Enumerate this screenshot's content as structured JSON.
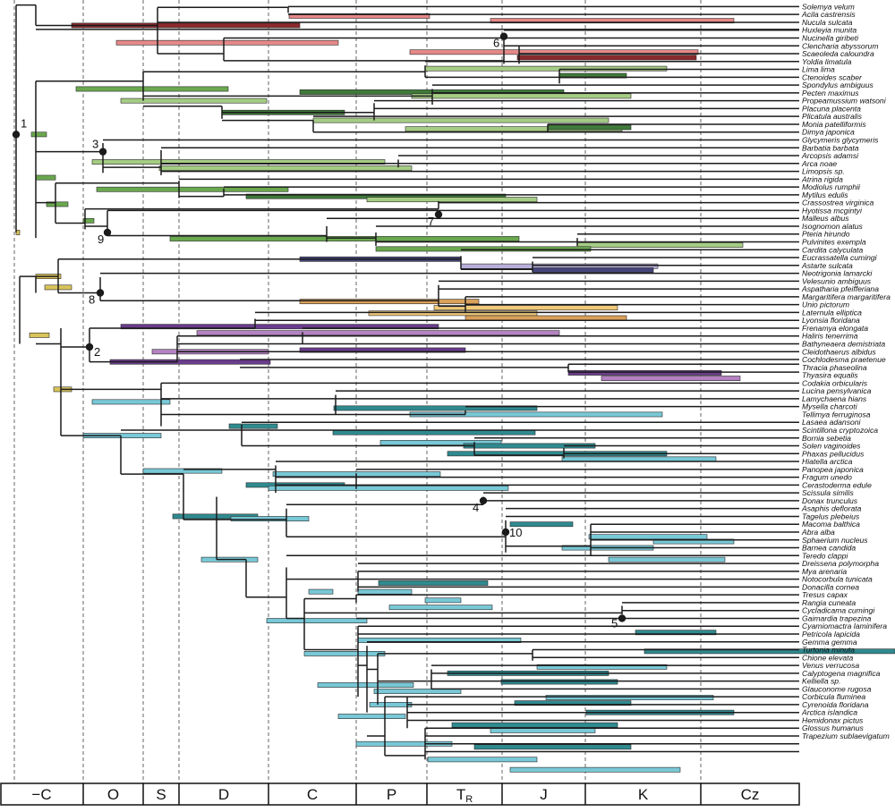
{
  "figure": {
    "periods": [
      "−C",
      "O",
      "S",
      "D",
      "C",
      "P",
      "TR",
      "J",
      "K",
      "Cz"
    ],
    "taxa": [
      "Solemya velum",
      "Acila castrensis",
      "Nucula sulcata",
      "Huxleyia munita",
      "Nucinella giribeti",
      "Clencharia abyssorum",
      "Scaeoleda caloundra",
      "Yoldia limatula",
      "Lima lima",
      "Ctenoides scaber",
      "Spondylus ambiguus",
      "Pecten maximus",
      "Propeamussium watsoni",
      "Placuna placenta",
      "Plicatula australis",
      "Monia patelliformis",
      "Dimya japonica",
      "Glycymeris glycymeris",
      "Barbatia barbata",
      "Arcopsis adamsi",
      "Arca noae",
      "Limopsis sp.",
      "Atrina rigida",
      "Modiolus rumphii",
      "Mytilus edulis",
      "Crassostrea virginica",
      "Hyotissa mcgintyi",
      "Malleus albus",
      "Isognomon alatus",
      "Pteria hirundo",
      "Pulvinites exempla",
      "Cardita calyculata",
      "Eucrassatella cumingi",
      "Astarte sulcata",
      "Neotrigonia lamarcki",
      "Velesunio ambiguus",
      "Aspatharia pfeifferiana",
      "Margaritifera margaritifera",
      "Unio pictorum",
      "Laternula elliptica",
      "Lyonsia floridana",
      "Frenamya elongata",
      "Haliris tenerrima",
      "Bathyneaera demistriata",
      "Cleidothaerus albidus",
      "Cochlodesma praetenue",
      "Thracia phaseolina",
      "Thyasira equalis",
      "Codakia orbicularis",
      "Lucina pensylvanica",
      "Lamychaena hians",
      "Mysella charcoti",
      "Tellimya ferruginosa",
      "Lasaea adansoni",
      "Scintillona cryptozoica",
      "Bornia sebetia",
      "Solen vaginoides",
      "Phaxas pellucidus",
      "Hiatella arctica",
      "Panopea japonica",
      "Fragum unedo",
      "Cerastoderma edule",
      "Scissula similis",
      "Donax trunculus",
      "Asaphis deflorata",
      "Tagelus plebeius",
      "Macoma balthica",
      "Abra alba",
      "Sphaerium nucleus",
      "Barnea candida",
      "Teredo clappi",
      "Dreissena polymorpha",
      "Mya arenaria",
      "Notocorbula tunicata",
      "Donacilla cornea",
      "Tresus capax",
      "Rangia cuneata",
      "Cycladicama cumingi",
      "Gaimardia trapezina",
      "Cyamiomactra laminifera",
      "Petricola lapicida",
      "Gemma gemma",
      "Turtonia minuta",
      "Chione elevata",
      "Venus verrucosa",
      "Calyptogena magnifica",
      "Kelliella sp.",
      "Glauconome rugosa",
      "Corbicula fluminea",
      "Cyrenoida floridana",
      "Arctica islandica",
      "Hemidonax pictus",
      "Glossus humanus",
      "Trapezium sublaevigatum"
    ],
    "node_labels": [
      "1",
      "2",
      "3",
      "4",
      "5",
      "6",
      "7",
      "8",
      "9",
      "10"
    ]
  }
}
